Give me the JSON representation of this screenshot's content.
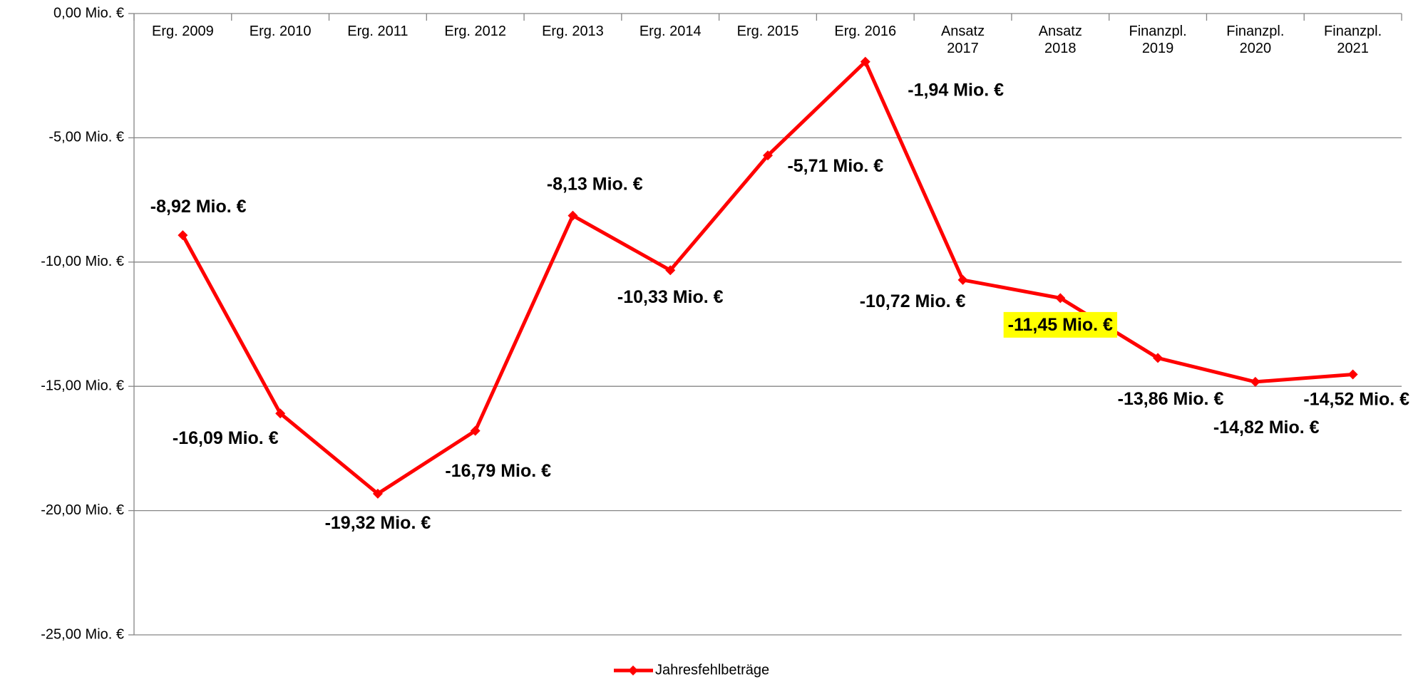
{
  "chart_data": {
    "type": "line",
    "categories": [
      "Erg. 2009",
      "Erg. 2010",
      "Erg. 2011",
      "Erg. 2012",
      "Erg. 2013",
      "Erg. 2014",
      "Erg. 2015",
      "Erg. 2016",
      "Ansatz 2017",
      "Ansatz 2018",
      "Finanzpl. 2019",
      "Finanzpl. 2020",
      "Finanzpl. 2021"
    ],
    "series": [
      {
        "name": "Jahresfehlbeträge",
        "color": "#ff0000",
        "values": [
          -8.92,
          -16.09,
          -19.32,
          -16.79,
          -8.13,
          -10.33,
          -5.71,
          -1.94,
          -10.72,
          -11.45,
          -13.86,
          -14.82,
          -14.52
        ],
        "value_labels": [
          "-8,92 Mio. €",
          "-16,09 Mio. €",
          "-19,32 Mio. €",
          "-16,79 Mio. €",
          "-8,13 Mio. €",
          "-10,33 Mio. €",
          "-5,71 Mio. €",
          "-1,94 Mio. €",
          "-10,72 Mio. €",
          "-11,45 Mio. €",
          "-13,86 Mio. €",
          "-14,82 Mio. €",
          "-14,52 Mio. €"
        ]
      }
    ],
    "ylim": [
      -25,
      0
    ],
    "yticks": [
      {
        "value": 0,
        "label": "0,00 Mio. €"
      },
      {
        "value": -5,
        "label": "-5,00 Mio. €"
      },
      {
        "value": -10,
        "label": "-10,00 Mio. €"
      },
      {
        "value": -15,
        "label": "-15,00 Mio. €"
      },
      {
        "value": -20,
        "label": "-20,00 Mio. €"
      },
      {
        "value": -25,
        "label": "-25,00 Mio. €"
      }
    ],
    "grid": true,
    "legend": "bottom"
  }
}
